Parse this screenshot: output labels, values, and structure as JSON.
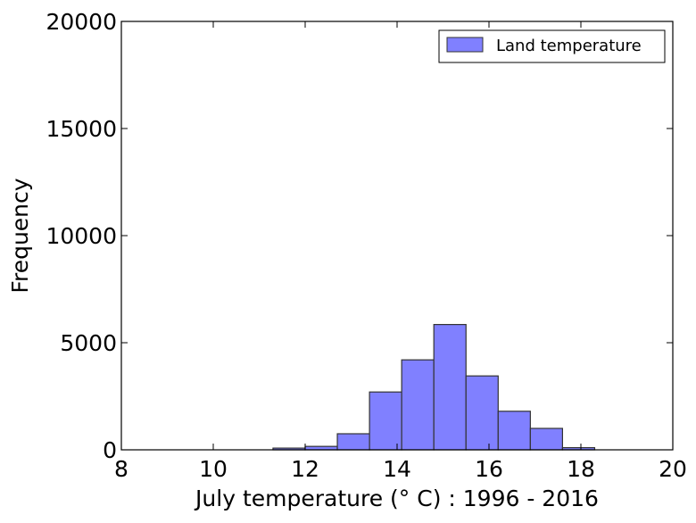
{
  "chart_data": {
    "type": "bar",
    "title": "",
    "xlabel": "July temperature (° C) : 1996 - 2016",
    "ylabel": "Frequency",
    "xlim": [
      8,
      20
    ],
    "ylim": [
      0,
      20000
    ],
    "xticks": [
      8,
      10,
      12,
      14,
      16,
      18,
      20
    ],
    "yticks": [
      0,
      5000,
      10000,
      15000,
      20000
    ],
    "grid": false,
    "legend": "top-right",
    "bar_color": "#8080ff",
    "bar_edge_color": "#333333",
    "series": [
      {
        "name": "Land temperature",
        "bins": [
          {
            "x0": 11.3,
            "x1": 12.0,
            "value": 80
          },
          {
            "x0": 12.0,
            "x1": 12.7,
            "value": 160
          },
          {
            "x0": 12.7,
            "x1": 13.4,
            "value": 750
          },
          {
            "x0": 13.4,
            "x1": 14.1,
            "value": 2700
          },
          {
            "x0": 14.1,
            "x1": 14.8,
            "value": 4200
          },
          {
            "x0": 14.8,
            "x1": 15.5,
            "value": 5850
          },
          {
            "x0": 15.5,
            "x1": 16.2,
            "value": 3450
          },
          {
            "x0": 16.2,
            "x1": 16.9,
            "value": 1800
          },
          {
            "x0": 16.9,
            "x1": 17.6,
            "value": 1000
          },
          {
            "x0": 17.6,
            "x1": 18.3,
            "value": 100
          }
        ]
      }
    ]
  }
}
